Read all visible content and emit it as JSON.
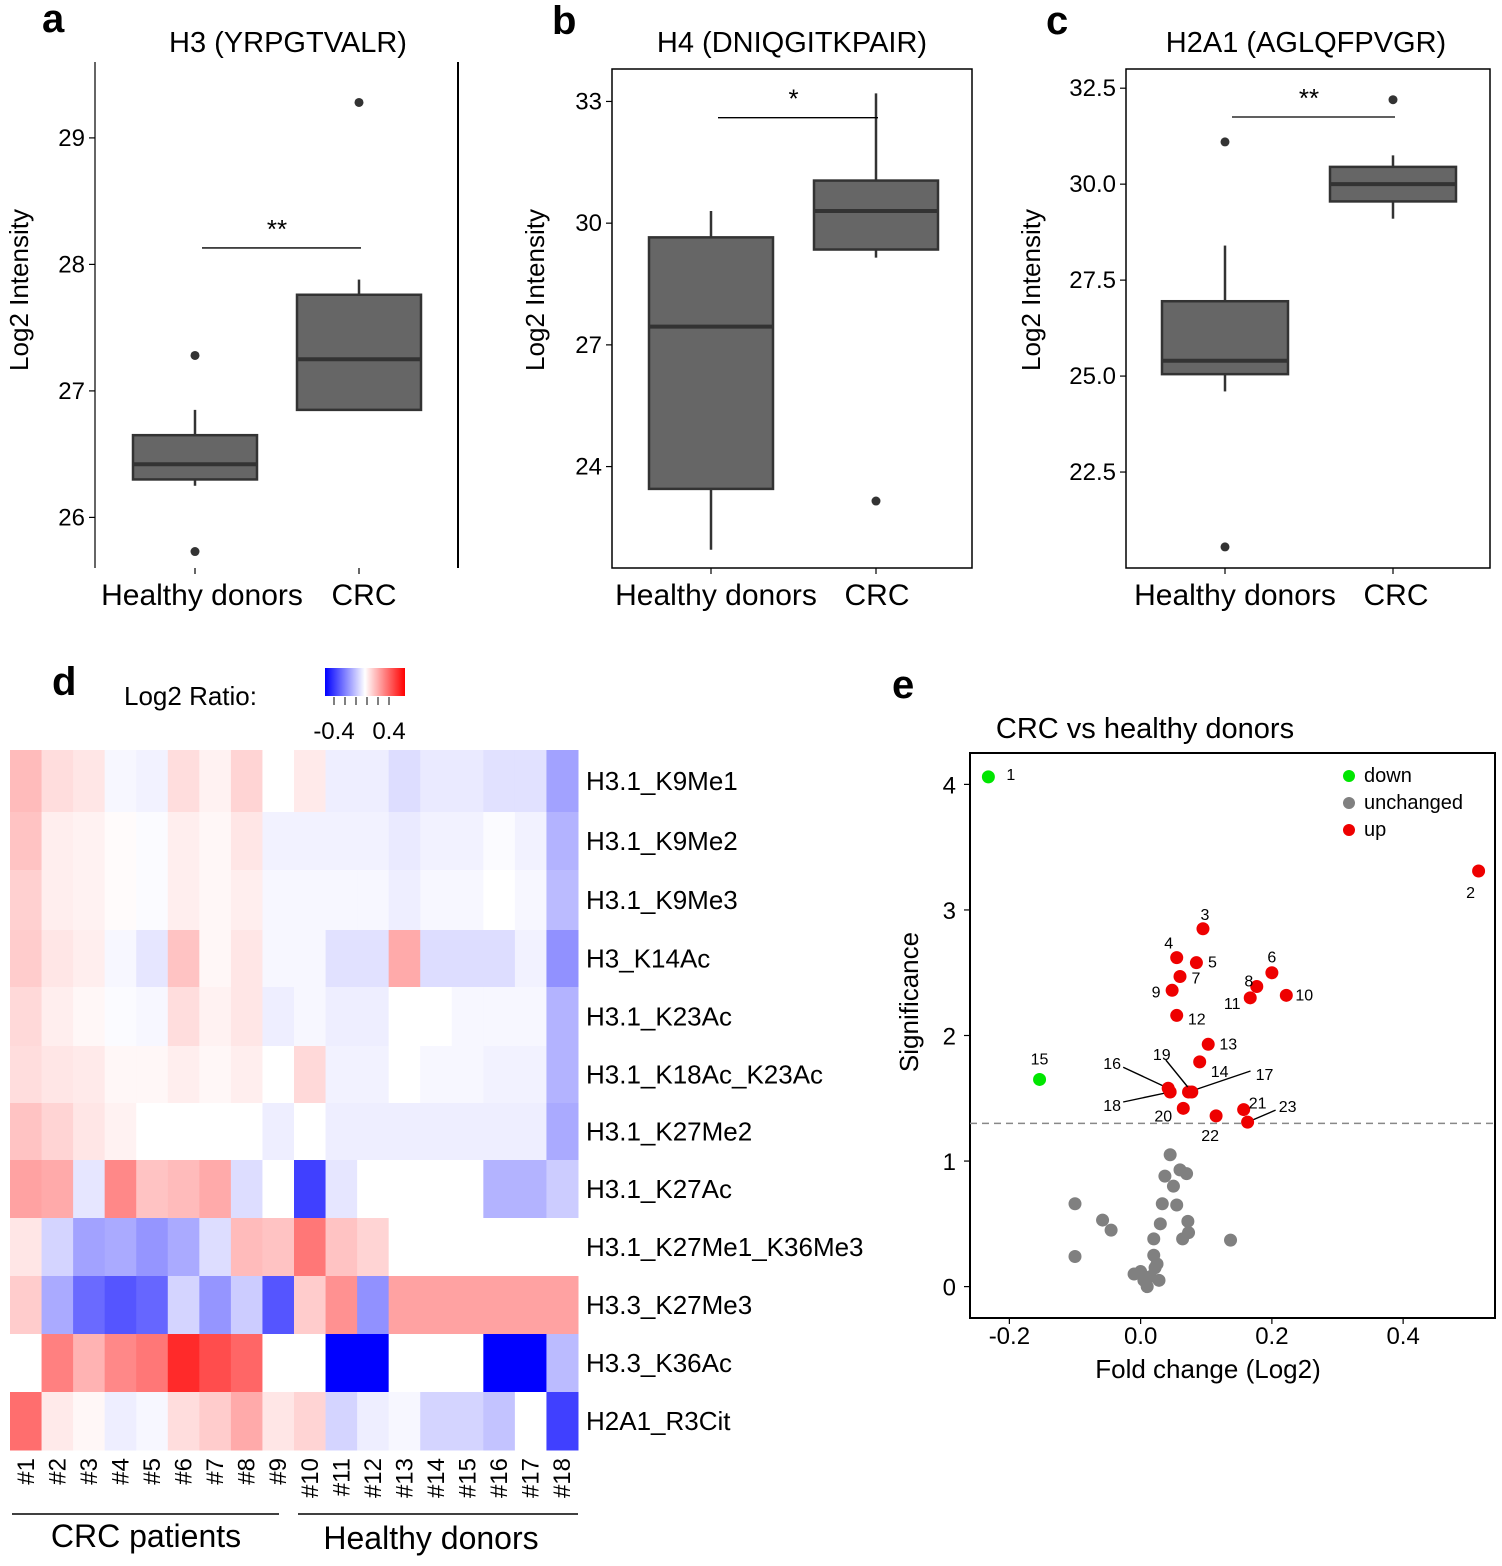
{
  "panels": {
    "a": {
      "letter": "a",
      "chart_data": {
        "type": "boxplot",
        "title": "H3 (YRPGTVALR)",
        "ylabel": "Log2 Intensity",
        "ylim": [
          25.6,
          29.6
        ],
        "yticks": [
          26,
          27,
          28,
          29
        ],
        "ytick_labels": [
          "26",
          "27",
          "28",
          "29"
        ],
        "categories": [
          "Healthy donors",
          "CRC"
        ],
        "boxes": [
          {
            "q1": 26.3,
            "median": 26.42,
            "q3": 26.65,
            "whisker_low": 26.25,
            "whisker_high": 26.85,
            "outliers": [
              27.28,
              25.73
            ]
          },
          {
            "q1": 26.85,
            "median": 27.25,
            "q3": 27.76,
            "whisker_low": 26.85,
            "whisker_high": 27.88,
            "outliers": [
              29.28
            ]
          }
        ],
        "significance": {
          "label": "**",
          "y": 28.13
        }
      }
    },
    "b": {
      "letter": "b",
      "chart_data": {
        "type": "boxplot",
        "title": "H4 (DNIQGITKPAIR)",
        "ylabel": "Log2 Intensity",
        "ylim": [
          21.5,
          33.8
        ],
        "yticks": [
          24,
          27,
          30,
          33
        ],
        "ytick_labels": [
          "24",
          "27",
          "30",
          "33"
        ],
        "categories": [
          "Healthy donors",
          "CRC"
        ],
        "boxes": [
          {
            "q1": 23.45,
            "median": 27.45,
            "q3": 29.65,
            "whisker_low": 21.95,
            "whisker_high": 30.3,
            "outliers": []
          },
          {
            "q1": 29.35,
            "median": 30.3,
            "q3": 31.05,
            "whisker_low": 29.15,
            "whisker_high": 33.2,
            "outliers": [
              23.15
            ]
          }
        ],
        "significance": {
          "label": "*",
          "y": 32.6
        }
      }
    },
    "c": {
      "letter": "c",
      "chart_data": {
        "type": "boxplot",
        "title": "H2A1 (AGLQFPVGR)",
        "ylabel": "Log2 Intensity",
        "ylim": [
          20.0,
          33.0
        ],
        "yticks": [
          22.5,
          25.0,
          27.5,
          30.0,
          32.5
        ],
        "ytick_labels": [
          "22.5",
          "25.0",
          "27.5",
          "30.0",
          "32.5"
        ],
        "categories": [
          "Healthy donors",
          "CRC"
        ],
        "boxes": [
          {
            "q1": 25.05,
            "median": 25.4,
            "q3": 26.95,
            "whisker_low": 24.6,
            "whisker_high": 28.4,
            "outliers": [
              31.1,
              20.55
            ]
          },
          {
            "q1": 29.55,
            "median": 30.0,
            "q3": 30.45,
            "whisker_low": 29.1,
            "whisker_high": 30.75,
            "outliers": [
              32.2
            ]
          }
        ],
        "significance": {
          "label": "**",
          "y": 31.75
        }
      }
    },
    "d": {
      "letter": "d",
      "chart_data": {
        "type": "heatmap",
        "colorbar": {
          "label": "Log2 Ratio:",
          "min": -0.4,
          "max": 0.4,
          "tick_labels": [
            "-0.4",
            "0.4"
          ],
          "colors": [
            "#0000ff",
            "#ffffff",
            "#ff0000"
          ]
        },
        "columns": [
          "#1",
          "#2",
          "#3",
          "#4",
          "#5",
          "#6",
          "#7",
          "#8",
          "#9",
          "#10",
          "#11",
          "#12",
          "#13",
          "#14",
          "#15",
          "#16",
          "#17",
          "#18"
        ],
        "rows": [
          "H3.1_K9Me1",
          "H3.1_K9Me2",
          "H3.1_K9Me3",
          "H3_K14Ac",
          "H3.1_K23Ac",
          "H3.1_K18Ac_K23Ac",
          "H3.1_K27Me2",
          "H3.1_K27Ac",
          "H3.1_K27Me1_K36Me3",
          "H3.3_K27Me3",
          "H3.3_K36Ac",
          "H2A1_R3Cit"
        ],
        "values": [
          [
            0.16,
            0.08,
            0.06,
            -0.02,
            -0.03,
            0.08,
            0.03,
            0.1,
            0.0,
            0.05,
            -0.04,
            -0.04,
            -0.08,
            -0.05,
            -0.05,
            -0.07,
            -0.07,
            -0.22
          ],
          [
            0.14,
            0.04,
            0.03,
            0.01,
            -0.01,
            0.04,
            0.02,
            0.06,
            -0.03,
            -0.03,
            -0.03,
            -0.03,
            -0.05,
            -0.03,
            -0.03,
            -0.01,
            -0.03,
            -0.18
          ],
          [
            0.11,
            0.04,
            0.03,
            0.01,
            -0.01,
            0.04,
            0.02,
            0.04,
            -0.02,
            -0.02,
            -0.02,
            -0.02,
            -0.04,
            -0.02,
            -0.02,
            0.0,
            -0.02,
            -0.16
          ],
          [
            0.12,
            0.06,
            0.04,
            -0.02,
            -0.06,
            0.14,
            0.02,
            0.06,
            -0.02,
            -0.02,
            -0.07,
            -0.07,
            0.2,
            -0.08,
            -0.08,
            -0.08,
            -0.03,
            -0.26
          ],
          [
            0.09,
            0.04,
            0.02,
            -0.01,
            -0.02,
            0.08,
            0.03,
            0.06,
            -0.04,
            -0.02,
            -0.04,
            -0.04,
            0.0,
            0.0,
            -0.02,
            -0.02,
            -0.02,
            -0.18
          ],
          [
            0.08,
            0.06,
            0.05,
            0.02,
            0.02,
            0.04,
            0.02,
            0.04,
            0.0,
            0.09,
            -0.03,
            -0.03,
            0.0,
            -0.02,
            -0.02,
            -0.03,
            -0.03,
            -0.18
          ],
          [
            0.14,
            0.1,
            0.06,
            0.03,
            0.0,
            0.0,
            0.0,
            0.0,
            -0.04,
            0.0,
            -0.04,
            -0.04,
            -0.04,
            -0.04,
            -0.04,
            -0.04,
            -0.04,
            -0.2
          ],
          [
            0.22,
            0.2,
            -0.06,
            0.28,
            0.14,
            0.16,
            0.2,
            -0.08,
            0.0,
            -0.45,
            -0.06,
            0.0,
            0.0,
            0.0,
            0.0,
            -0.18,
            -0.18,
            -0.12
          ],
          [
            0.06,
            -0.1,
            -0.22,
            -0.2,
            -0.25,
            -0.2,
            -0.08,
            0.16,
            0.14,
            0.32,
            0.14,
            0.1,
            0.0,
            0.0,
            0.0,
            0.0,
            0.0,
            0.0
          ],
          [
            0.12,
            -0.2,
            -0.35,
            -0.4,
            -0.36,
            -0.1,
            -0.25,
            -0.12,
            -0.4,
            0.12,
            0.26,
            -0.26,
            0.22,
            0.22,
            0.22,
            0.22,
            0.22,
            0.22
          ],
          [
            0.0,
            0.3,
            0.18,
            0.28,
            0.32,
            0.5,
            0.42,
            0.36,
            0.0,
            0.0,
            -0.68,
            -1.0,
            0.0,
            0.0,
            0.0,
            -0.62,
            -0.62,
            -0.16
          ],
          [
            0.34,
            0.05,
            0.02,
            -0.04,
            -0.02,
            0.08,
            0.12,
            0.2,
            0.06,
            0.1,
            -0.1,
            -0.04,
            -0.02,
            -0.1,
            -0.1,
            -0.14,
            0.0,
            -0.45
          ]
        ],
        "groups": [
          {
            "label": "CRC patients",
            "columns": [
              "#1",
              "#2",
              "#3",
              "#4",
              "#5",
              "#6",
              "#7",
              "#8",
              "#9"
            ]
          },
          {
            "label": "Healthy donors",
            "columns": [
              "#10",
              "#11",
              "#12",
              "#13",
              "#14",
              "#15",
              "#16",
              "#17",
              "#18"
            ]
          }
        ]
      }
    },
    "e": {
      "letter": "e",
      "chart_data": {
        "type": "scatter",
        "title": "CRC vs healthy donors",
        "xlabel": "Fold change (Log2)",
        "ylabel": "Significance",
        "xlim": [
          -0.26,
          0.54
        ],
        "ylim": [
          -0.25,
          4.25
        ],
        "xticks": [
          -0.2,
          0.0,
          0.2,
          0.4
        ],
        "xtick_labels": [
          "-0.2",
          "0.0",
          "0.2",
          "0.4"
        ],
        "yticks": [
          0,
          1,
          2,
          3,
          4
        ],
        "ytick_labels": [
          "0",
          "1",
          "2",
          "3",
          "4"
        ],
        "threshold_y": 1.3,
        "legend": [
          {
            "label": "down",
            "color": "#00e600"
          },
          {
            "label": "unchanged",
            "color": "#808080"
          },
          {
            "label": "up",
            "color": "#ee0000"
          }
        ],
        "series": [
          {
            "name": "down",
            "points": [
              {
                "x": -0.232,
                "y": 4.06,
                "label": "1"
              },
              {
                "x": -0.154,
                "y": 1.65,
                "label": "15"
              }
            ]
          },
          {
            "name": "up",
            "points": [
              {
                "x": 0.515,
                "y": 3.31,
                "label": "2"
              },
              {
                "x": 0.095,
                "y": 2.85,
                "label": "3"
              },
              {
                "x": 0.055,
                "y": 2.62,
                "label": "4"
              },
              {
                "x": 0.085,
                "y": 2.58,
                "label": "5"
              },
              {
                "x": 0.2,
                "y": 2.5,
                "label": "6"
              },
              {
                "x": 0.06,
                "y": 2.47,
                "label": "7"
              },
              {
                "x": 0.177,
                "y": 2.39,
                "label": "8"
              },
              {
                "x": 0.048,
                "y": 2.36,
                "label": "9"
              },
              {
                "x": 0.222,
                "y": 2.32,
                "label": "10"
              },
              {
                "x": 0.167,
                "y": 2.3,
                "label": "11"
              },
              {
                "x": 0.055,
                "y": 2.16,
                "label": "12"
              },
              {
                "x": 0.103,
                "y": 1.93,
                "label": "13"
              },
              {
                "x": 0.09,
                "y": 1.79,
                "label": "14"
              },
              {
                "x": 0.042,
                "y": 1.58,
                "label": "16"
              },
              {
                "x": 0.073,
                "y": 1.55,
                "label": "17"
              },
              {
                "x": 0.045,
                "y": 1.55,
                "label": "18"
              },
              {
                "x": 0.078,
                "y": 1.55,
                "label": "19"
              },
              {
                "x": 0.065,
                "y": 1.42,
                "label": "20"
              },
              {
                "x": 0.157,
                "y": 1.41,
                "label": "21"
              },
              {
                "x": 0.115,
                "y": 1.36,
                "label": "22"
              },
              {
                "x": 0.163,
                "y": 1.31,
                "label": "23"
              }
            ]
          },
          {
            "name": "unchanged",
            "points": [
              {
                "x": -0.1,
                "y": 0.66
              },
              {
                "x": -0.1,
                "y": 0.24
              },
              {
                "x": -0.058,
                "y": 0.53
              },
              {
                "x": -0.045,
                "y": 0.45
              },
              {
                "x": -0.01,
                "y": 0.1
              },
              {
                "x": 0.0,
                "y": 0.12
              },
              {
                "x": 0.005,
                "y": 0.05
              },
              {
                "x": 0.01,
                "y": 0.0
              },
              {
                "x": 0.015,
                "y": 0.08
              },
              {
                "x": 0.02,
                "y": 0.25
              },
              {
                "x": 0.022,
                "y": 0.15
              },
              {
                "x": 0.025,
                "y": 0.18
              },
              {
                "x": 0.028,
                "y": 0.05
              },
              {
                "x": 0.02,
                "y": 0.38
              },
              {
                "x": 0.03,
                "y": 0.5
              },
              {
                "x": 0.033,
                "y": 0.66
              },
              {
                "x": 0.037,
                "y": 0.88
              },
              {
                "x": 0.045,
                "y": 1.05
              },
              {
                "x": 0.05,
                "y": 0.8
              },
              {
                "x": 0.055,
                "y": 0.65
              },
              {
                "x": 0.06,
                "y": 0.93
              },
              {
                "x": 0.064,
                "y": 0.38
              },
              {
                "x": 0.07,
                "y": 0.9
              },
              {
                "x": 0.073,
                "y": 0.43
              },
              {
                "x": 0.072,
                "y": 0.52
              },
              {
                "x": 0.137,
                "y": 0.37
              }
            ]
          }
        ]
      }
    }
  }
}
